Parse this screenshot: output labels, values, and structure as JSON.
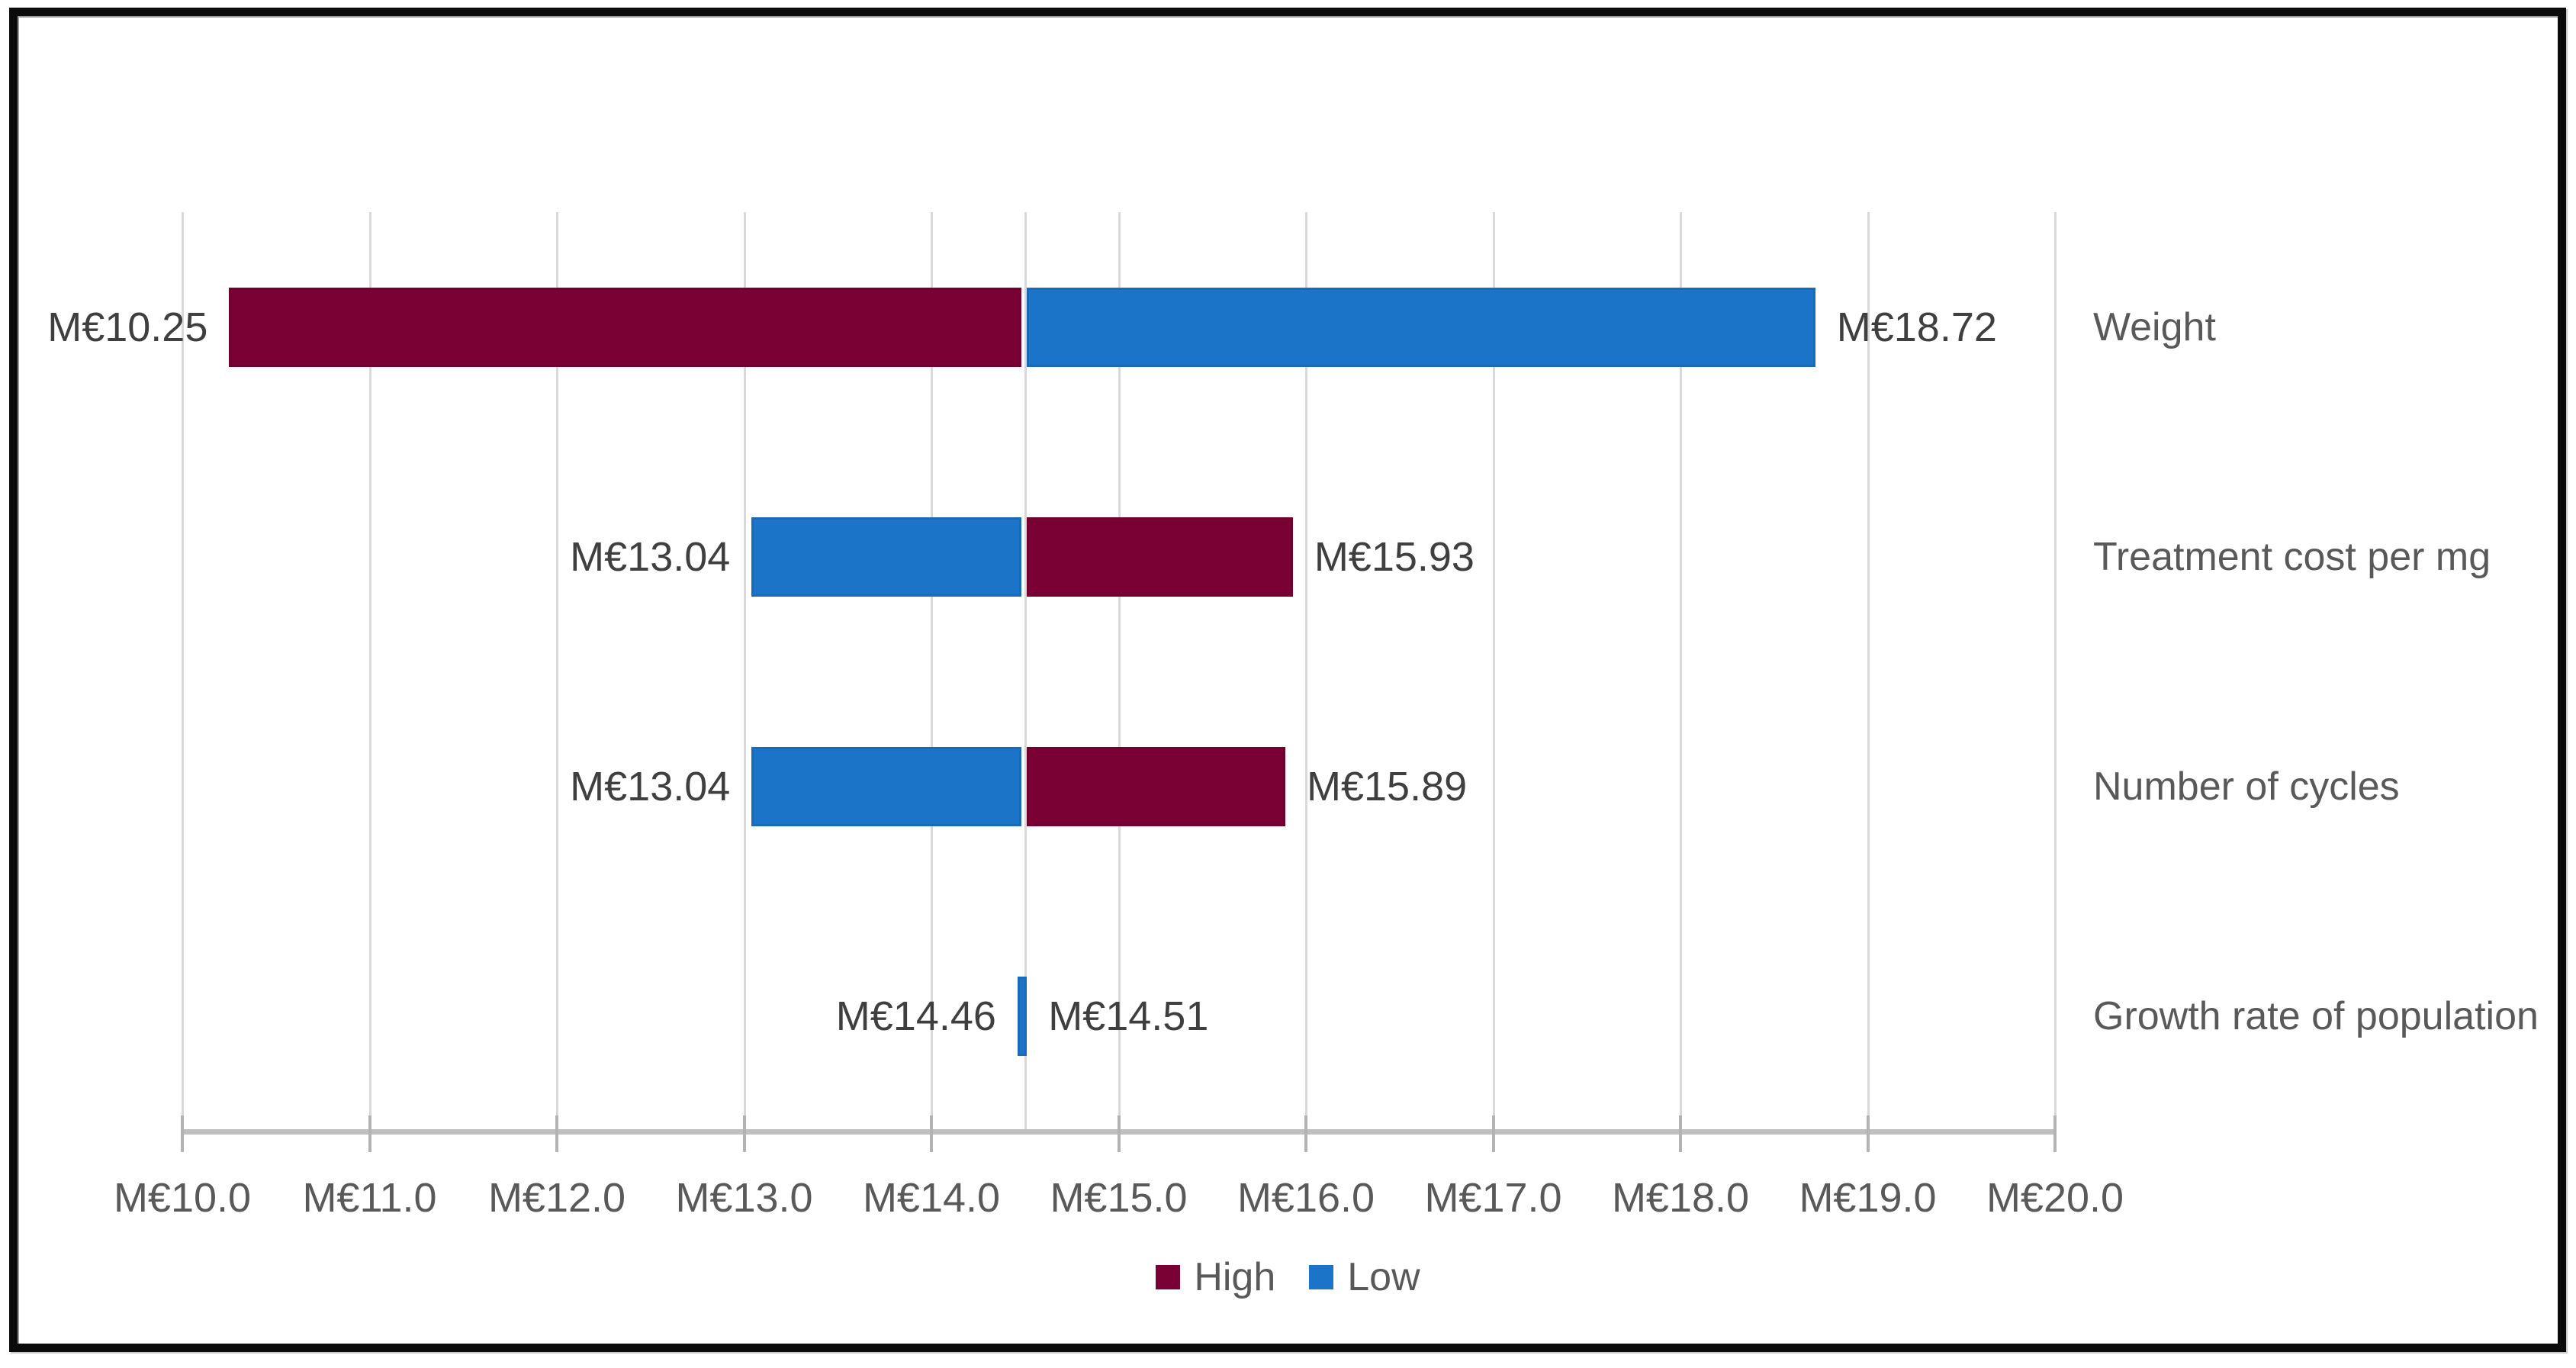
{
  "chart_data": {
    "type": "bar",
    "subtype": "tornado-sensitivity",
    "orientation": "horizontal",
    "title": "",
    "xlabel": "",
    "ylabel": "",
    "grid": true,
    "x_axis": {
      "min": 10.0,
      "max": 20.0,
      "tick_step": 1.0,
      "tick_labels": [
        "M€10.0",
        "M€11.0",
        "M€12.0",
        "M€13.0",
        "M€14.0",
        "M€15.0",
        "M€16.0",
        "M€17.0",
        "M€18.0",
        "M€19.0",
        "M€20.0"
      ]
    },
    "base_case_x": 14.5,
    "categories": [
      "Weight",
      "Treatment cost per mg",
      "Number of cycles",
      "Growth rate of population"
    ],
    "series": [
      {
        "name": "High",
        "color": "#7A0133"
      },
      {
        "name": "Low",
        "color": "#1B74C8"
      }
    ],
    "rows": [
      {
        "category": "Weight",
        "left_label": "M€10.25",
        "right_label": "M€18.72",
        "segments": [
          {
            "series": "High",
            "from": 10.25,
            "to": 14.48
          },
          {
            "series": "Low",
            "from": 14.51,
            "to": 18.72
          }
        ]
      },
      {
        "category": "Treatment cost per mg",
        "left_label": "M€13.04",
        "right_label": "M€15.93",
        "segments": [
          {
            "series": "Low",
            "from": 13.04,
            "to": 14.48
          },
          {
            "series": "High",
            "from": 14.51,
            "to": 15.93
          }
        ]
      },
      {
        "category": "Number of cycles",
        "left_label": "M€13.04",
        "right_label": "M€15.89",
        "segments": [
          {
            "series": "Low",
            "from": 13.04,
            "to": 14.48
          },
          {
            "series": "High",
            "from": 14.51,
            "to": 15.89
          }
        ]
      },
      {
        "category": "Growth rate of population",
        "left_label": "M€14.46",
        "right_label": "M€14.51",
        "segments": [
          {
            "series": "Low",
            "from": 14.46,
            "to": 14.51
          }
        ]
      }
    ],
    "legend": {
      "position": "bottom-center",
      "items": [
        {
          "label": "High",
          "color": "#7A0133"
        },
        {
          "label": "Low",
          "color": "#1B74C8"
        }
      ]
    },
    "colors": {
      "grid": "#D9D9D9",
      "axis_line": "#BFBFBF",
      "tick_mark": "#B3B3B3",
      "value_label_text": "#3F3F3F",
      "tick_label_text": "#595959",
      "category_label_text": "#595959",
      "legend_text": "#595959",
      "figure_border": "#0b0b0b"
    }
  }
}
